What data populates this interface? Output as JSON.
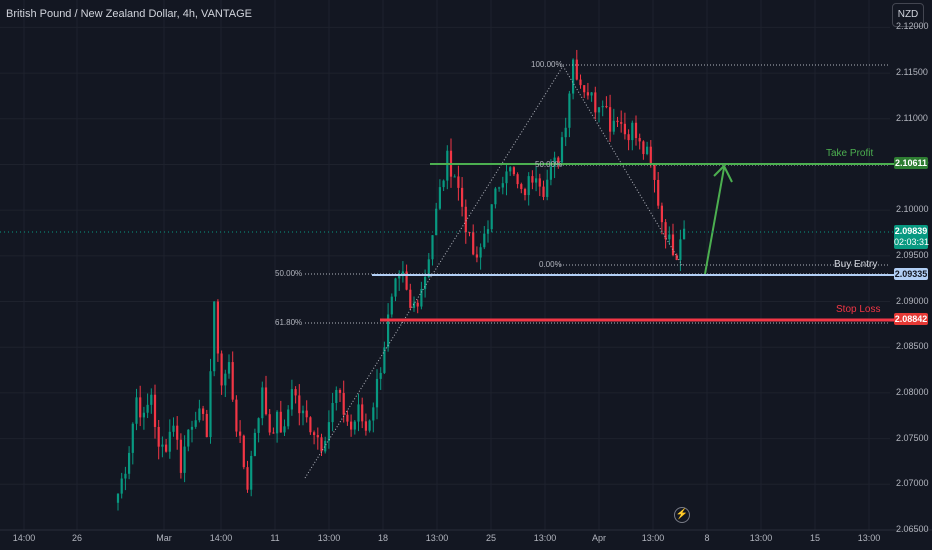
{
  "header": {
    "title": "British Pound / New Zealand Dollar, 4h, VANTAGE",
    "currency": "NZD"
  },
  "price_scale": {
    "ticks": [
      "2.12000",
      "2.11500",
      "2.11000",
      "2.10500",
      "2.10000",
      "2.09500",
      "2.09000",
      "2.08500",
      "2.08000",
      "2.07500",
      "2.07000",
      "2.06500"
    ]
  },
  "time_scale": {
    "ticks": [
      "14:00",
      "26",
      "Mar",
      "14:00",
      "11",
      "13:00",
      "18",
      "13:00",
      "25",
      "13:00",
      "Apr",
      "13:00",
      "8",
      "13:00",
      "15",
      "13:00"
    ]
  },
  "levels": {
    "take_profit": {
      "label": "Take Profit",
      "price": "2.10611",
      "color": "#4caf50"
    },
    "buy_entry": {
      "label": "Buy Entry",
      "price": "2.09335",
      "color": "#b2cff5"
    },
    "stop_loss": {
      "label": "Stop Loss",
      "price": "2.08842",
      "color": "#f23645"
    },
    "current_price": {
      "price": "2.09839",
      "countdown": "02:03:31",
      "color": "#089981"
    }
  },
  "fib_left": {
    "labels": [
      "50.00%",
      "61.80%"
    ]
  },
  "fib_right": {
    "labels": [
      "100.00%",
      "50.00%",
      "0.00%"
    ]
  },
  "icons": {
    "lightning": "lightning-icon"
  },
  "chart_data": {
    "type": "candlestick",
    "title": "British Pound / New Zealand Dollar, 4h, VANTAGE",
    "ylabel": "NZD",
    "ylim": [
      2.065,
      2.123
    ],
    "y_ticks": [
      2.12,
      2.115,
      2.11,
      2.105,
      2.1,
      2.095,
      2.09,
      2.085,
      2.08,
      2.075,
      2.07,
      2.065
    ],
    "x_ticks": [
      "14:00",
      "26",
      "Mar",
      "14:00",
      "11",
      "13:00",
      "18",
      "13:00",
      "25",
      "13:00",
      "Apr",
      "13:00",
      "8",
      "13:00",
      "15",
      "13:00"
    ],
    "colors": {
      "up": "#089981",
      "down": "#f23645"
    },
    "grid": true,
    "anchors": [
      [
        0,
        2.069
      ],
      [
        2,
        2.072
      ],
      [
        3,
        2.074
      ],
      [
        5,
        2.0795
      ],
      [
        7,
        2.077
      ],
      [
        9,
        2.08
      ],
      [
        11,
        2.0735
      ],
      [
        13,
        2.0745
      ],
      [
        15,
        2.077
      ],
      [
        17,
        2.072
      ],
      [
        19,
        2.076
      ],
      [
        21,
        2.078
      ],
      [
        24,
        2.076
      ],
      [
        26,
        2.089
      ],
      [
        28,
        2.081
      ],
      [
        30,
        2.083
      ],
      [
        32,
        2.0765
      ],
      [
        34,
        2.072
      ],
      [
        35,
        2.07
      ],
      [
        37,
        2.076
      ],
      [
        39,
        2.08
      ],
      [
        41,
        2.076
      ],
      [
        43,
        2.077
      ],
      [
        45,
        2.0755
      ],
      [
        47,
        2.081
      ],
      [
        49,
        2.078
      ],
      [
        51,
        2.077
      ],
      [
        53,
        2.076
      ],
      [
        55,
        2.0745
      ],
      [
        57,
        2.077
      ],
      [
        59,
        2.08
      ],
      [
        61,
        2.078
      ],
      [
        63,
        2.076
      ],
      [
        65,
        2.078
      ],
      [
        67,
        2.076
      ],
      [
        69,
        2.079
      ],
      [
        71,
        2.083
      ],
      [
        73,
        2.088
      ],
      [
        75,
        2.0915
      ],
      [
        77,
        2.0925
      ],
      [
        79,
        2.089
      ],
      [
        81,
        2.0905
      ],
      [
        83,
        2.093
      ],
      [
        85,
        2.0975
      ],
      [
        87,
        2.102
      ],
      [
        89,
        2.1055
      ],
      [
        91,
        2.104
      ],
      [
        93,
        2.1005
      ],
      [
        95,
        2.0965
      ],
      [
        97,
        2.094
      ],
      [
        99,
        2.0975
      ],
      [
        101,
        2.1
      ],
      [
        103,
        2.103
      ],
      [
        105,
        2.105
      ],
      [
        107,
        2.1035
      ],
      [
        109,
        2.1015
      ],
      [
        111,
        2.103
      ],
      [
        113,
        2.1045
      ],
      [
        115,
        2.1025
      ],
      [
        117,
        2.104
      ],
      [
        119,
        2.106
      ],
      [
        121,
        2.11
      ],
      [
        123,
        2.1165
      ],
      [
        125,
        2.114
      ],
      [
        127,
        2.113
      ],
      [
        129,
        2.1115
      ],
      [
        131,
        2.1125
      ],
      [
        133,
        2.1095
      ],
      [
        135,
        2.1105
      ],
      [
        137,
        2.1085
      ],
      [
        139,
        2.109
      ],
      [
        141,
        2.107
      ],
      [
        143,
        2.106
      ],
      [
        145,
        2.103
      ],
      [
        147,
        2.099
      ],
      [
        149,
        2.0965
      ],
      [
        151,
        2.0955
      ],
      [
        152,
        2.0975
      ],
      [
        153,
        2.0984
      ]
    ]
  }
}
